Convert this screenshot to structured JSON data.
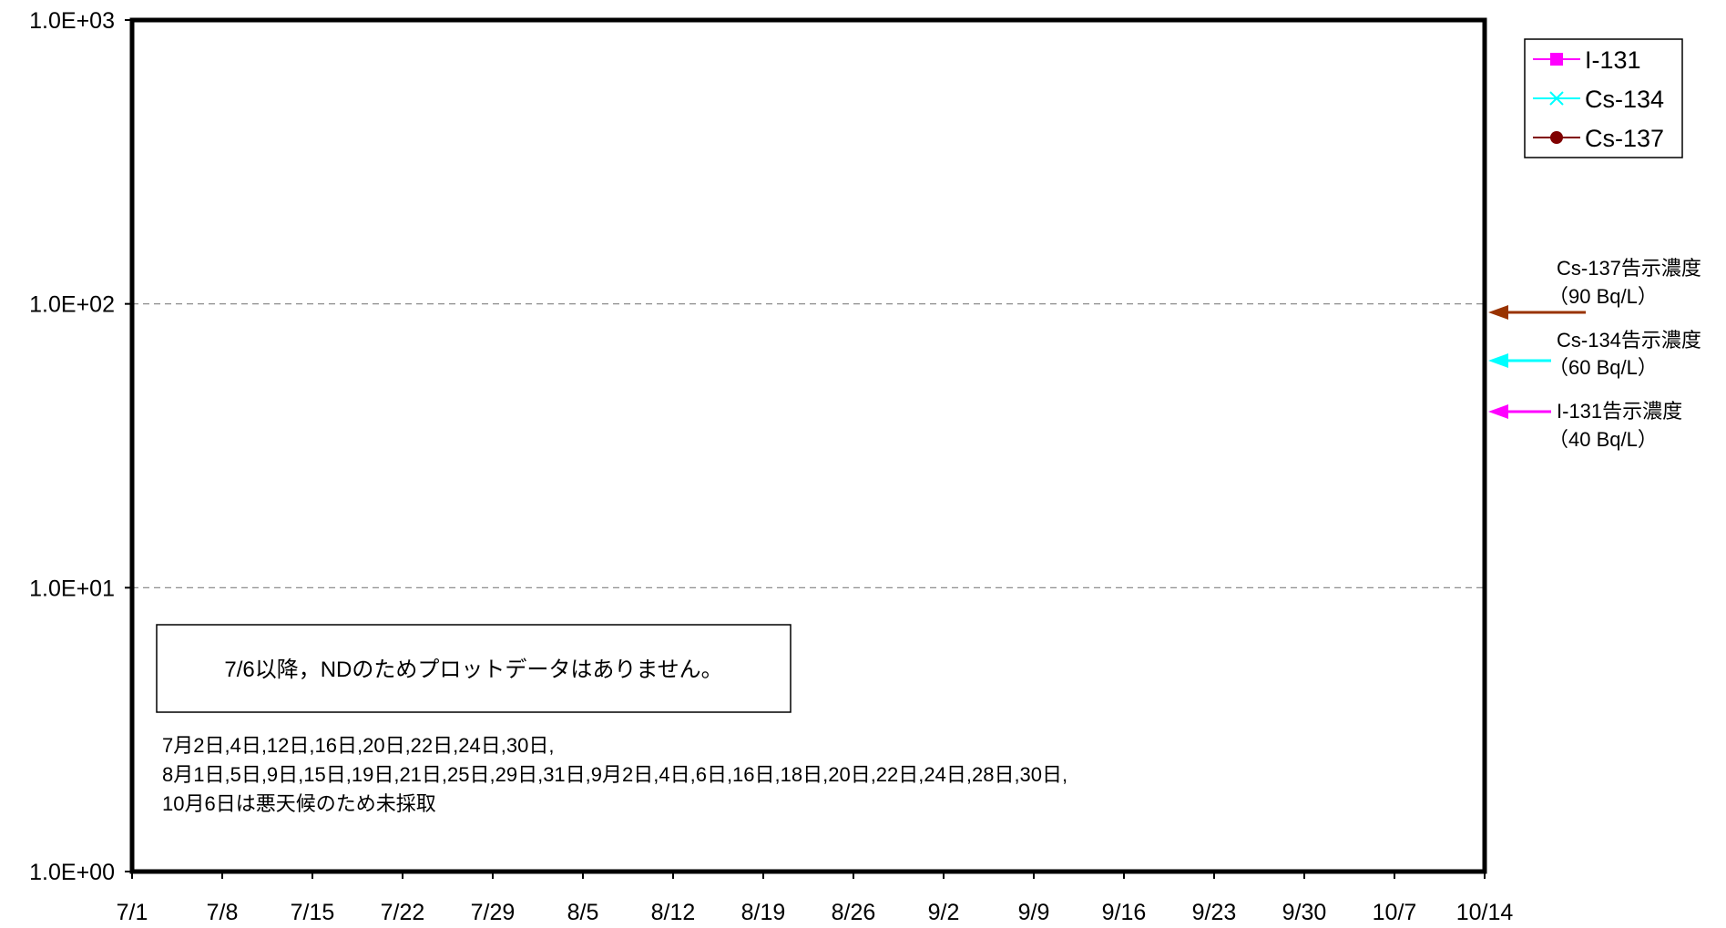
{
  "chart_data": {
    "type": "line",
    "title": "",
    "xlabel": "",
    "ylabel": "",
    "y_scale": "log",
    "ylim": [
      1,
      1000
    ],
    "y_ticks": [
      {
        "value": 1,
        "label": "1.0E+00"
      },
      {
        "value": 10,
        "label": "1.0E+01"
      },
      {
        "value": 100,
        "label": "1.0E+02"
      },
      {
        "value": 1000,
        "label": "1.0E+03"
      }
    ],
    "x_ticks": [
      "7/1",
      "7/8",
      "7/15",
      "7/22",
      "7/29",
      "8/5",
      "8/12",
      "8/19",
      "8/26",
      "9/2",
      "9/9",
      "9/16",
      "9/23",
      "9/30",
      "10/7",
      "10/14"
    ],
    "horizontal_grid": true,
    "grid_values": [
      10,
      100
    ],
    "legend_position": "top-right",
    "series": [
      {
        "name": "I-131",
        "color": "#ff00ff",
        "marker": "square",
        "values": []
      },
      {
        "name": "Cs-134",
        "color": "#00ffff",
        "marker": "x",
        "values": []
      },
      {
        "name": "Cs-137",
        "color": "#800000",
        "marker": "circle",
        "values": []
      }
    ],
    "reference_levels": [
      {
        "name": "Cs-137告示濃度",
        "value_label": "（90  Bq/L）",
        "value": 90,
        "color": "#993300"
      },
      {
        "name": "Cs-134告示濃度",
        "value_label": "（60  Bq/L）",
        "value": 60,
        "color": "#00ffff"
      },
      {
        "name": "I-131告示濃度",
        "value_label": "（40  Bq/L）",
        "value": 40,
        "color": "#ff00ff"
      }
    ],
    "annotations": {
      "box": "7/6以降，NDのためプロットデータはありません。",
      "note_lines": [
        "7月2日,4日,12日,16日,20日,22日,24日,30日,",
        "8月1日,5日,9日,15日,19日,21日,25日,29日,31日,9月2日,4日,6日,16日,18日,20日,22日,24日,28日,30日,",
        "10月6日は悪天候のため未採取"
      ]
    }
  }
}
